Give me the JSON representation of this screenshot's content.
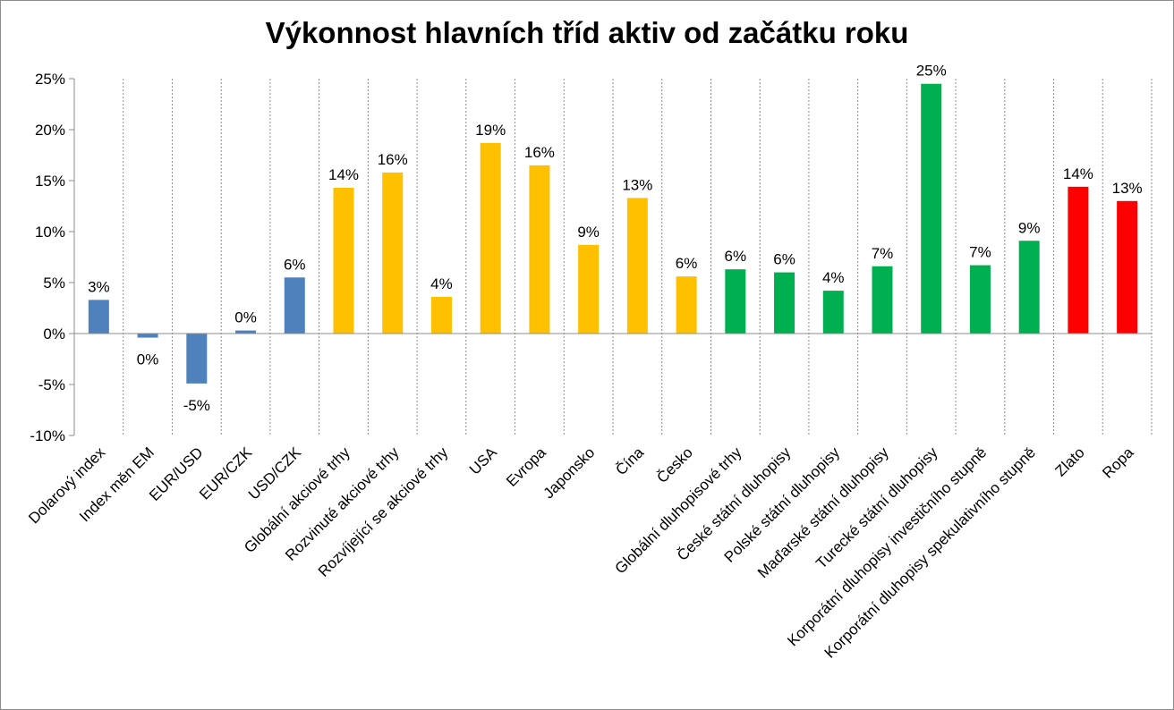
{
  "chart_data": {
    "type": "bar",
    "title": "Výkonnost hlavních tříd aktiv od začátku roku",
    "xlabel": "",
    "ylabel": "",
    "ylim": [
      -10,
      25
    ],
    "yticks": [
      "25%",
      "20%",
      "15%",
      "10%",
      "5%",
      "0%",
      "-5%",
      "-10%"
    ],
    "ytick_values": [
      25,
      20,
      15,
      10,
      5,
      0,
      -5,
      -10
    ],
    "grid": "vertical-dashed",
    "legend": "none",
    "categories": [
      "Dolarový index",
      "Index měn EM",
      "EUR/USD",
      "EUR/CZK",
      "USD/CZK",
      "Globální akciové trhy",
      "Rozvinuté akciové trhy",
      "Rozvíjející se akciové trhy",
      "USA",
      "Evropa",
      "Japonsko",
      "Čína",
      "Česko",
      "Globální dluhopisové trhy",
      "České státní dluhopisy",
      "Polské státní dluhopisy",
      "Maďarské státní dluhopisy",
      "Turecké státní dluhopisy",
      "Korporátní dluhopisy investičního stupně",
      "Korporátní dluhopisy spekulativního stupně",
      "Zlato",
      "Ropa"
    ],
    "values": [
      3.3,
      -0.4,
      -4.9,
      0.3,
      5.5,
      14.3,
      15.8,
      3.6,
      18.7,
      16.5,
      8.7,
      13.3,
      5.6,
      6.3,
      6.0,
      4.2,
      6.6,
      24.5,
      6.7,
      9.1,
      14.4,
      13.0
    ],
    "data_labels": [
      "3%",
      "0%",
      "-5%",
      "0%",
      "6%",
      "14%",
      "16%",
      "4%",
      "19%",
      "16%",
      "9%",
      "13%",
      "6%",
      "6%",
      "6%",
      "4%",
      "7%",
      "25%",
      "7%",
      "9%",
      "14%",
      "13%"
    ],
    "colors": [
      "#4f81bd",
      "#4f81bd",
      "#4f81bd",
      "#4f81bd",
      "#4f81bd",
      "#ffc000",
      "#ffc000",
      "#ffc000",
      "#ffc000",
      "#ffc000",
      "#ffc000",
      "#ffc000",
      "#ffc000",
      "#00b050",
      "#00b050",
      "#00b050",
      "#00b050",
      "#00b050",
      "#00b050",
      "#00b050",
      "#ff0000",
      "#ff0000"
    ]
  }
}
